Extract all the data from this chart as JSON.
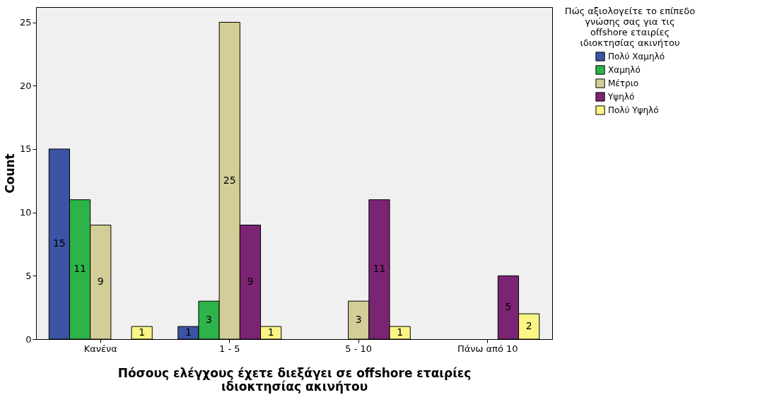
{
  "chart_data": {
    "type": "bar",
    "xlabel": "Πόσους ελέγχους έχετε διεξάγει σε offshore εταιρίες ιδιοκτησίας ακινήτου",
    "ylabel": "Count",
    "legend_title": "Πώς αξιολογείτε το επίπεδο γνώσης σας για τις offshore εταιρίες ιδιοκτησίας ακινήτου",
    "categories": [
      "Κανένα",
      "1 - 5",
      "5 - 10",
      "Πάνω από 10"
    ],
    "series": [
      {
        "name": "Πολύ Χαμηλό",
        "color": "#3b54a4",
        "values": [
          15,
          1,
          null,
          null
        ]
      },
      {
        "name": "Χαμηλό",
        "color": "#2db34a",
        "values": [
          11,
          3,
          null,
          null
        ]
      },
      {
        "name": "Μέτριο",
        "color": "#d3ce97",
        "values": [
          9,
          25,
          3,
          null
        ]
      },
      {
        "name": "Υψηλό",
        "color": "#7b2473",
        "values": [
          null,
          9,
          11,
          5
        ]
      },
      {
        "name": "Πολύ Υψηλό",
        "color": "#fbf584",
        "values": [
          1,
          1,
          1,
          2
        ]
      }
    ],
    "ylim": [
      0,
      26.2
    ],
    "yticks": [
      0,
      5,
      10,
      15,
      20,
      25
    ],
    "grid": false,
    "legend": "top right",
    "data_labels": true
  }
}
